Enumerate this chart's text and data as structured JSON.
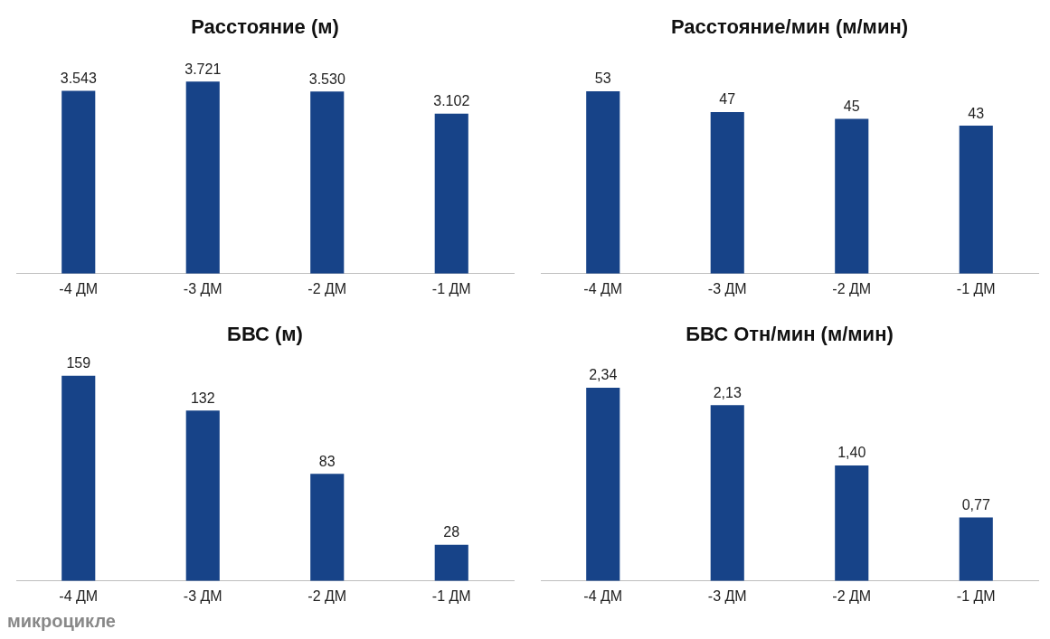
{
  "chart_data": [
    {
      "type": "bar",
      "title": "Расстояние (м)",
      "categories": [
        "-4 ДМ",
        "-3 ДМ",
        "-2 ДМ",
        "-1 ДМ"
      ],
      "values": [
        3543,
        3721,
        3530,
        3102
      ],
      "value_labels": [
        "3.543",
        "3.721",
        "3.530",
        "3.102"
      ],
      "color": "#174388",
      "grid": false,
      "legend": false
    },
    {
      "type": "bar",
      "title": "Расстояние/мин (м/мин)",
      "categories": [
        "-4 ДМ",
        "-3 ДМ",
        "-2 ДМ",
        "-1 ДМ"
      ],
      "values": [
        53,
        47,
        45,
        43
      ],
      "data_labels": true,
      "color": "#174388",
      "grid": false,
      "legend": false
    },
    {
      "type": "bar",
      "title": "БВС (м)",
      "categories": [
        "-4 ДМ",
        "-3 ДМ",
        "-2 ДМ",
        "-1 ДМ"
      ],
      "values": [
        159,
        132,
        83,
        28
      ],
      "data_labels": true,
      "color": "#174388",
      "grid": false,
      "legend": false,
      "annotations": [
        "микроцикле"
      ]
    },
    {
      "type": "bar",
      "title": "БВС Отн/мин (м/мин)",
      "categories": [
        "-4 ДМ",
        "-3 ДМ",
        "-2 ДМ",
        "-1 ДМ"
      ],
      "values": [
        2.34,
        2.13,
        1.4,
        0.77
      ],
      "value_labels": [
        "2,34",
        "2,13",
        "1,40",
        "0,77"
      ],
      "color": "#174388",
      "grid": false,
      "legend": false
    }
  ]
}
